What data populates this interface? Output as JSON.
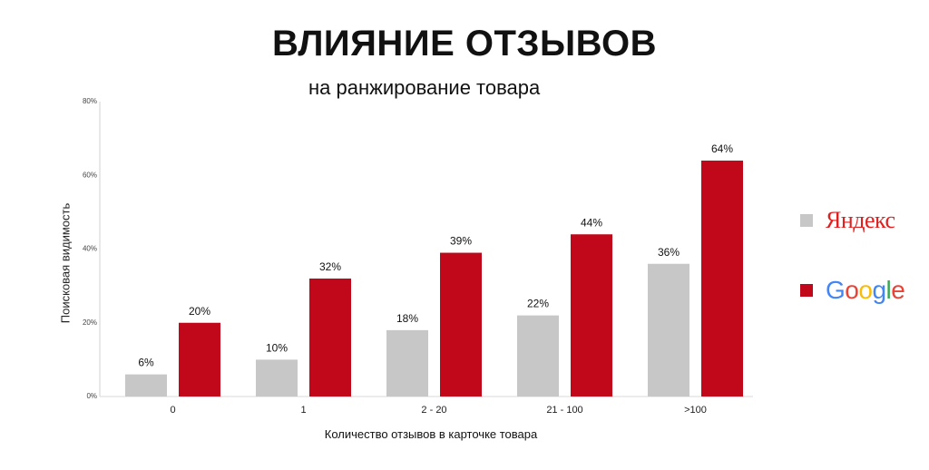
{
  "colors": {
    "yandex": "#c7c7c7",
    "google": "#c1081a"
  },
  "chart_data": {
    "type": "bar",
    "title": "ВЛИЯНИЕ ОТЗЫВОВ",
    "subtitle": "на ранжирование товара",
    "xlabel": "Количество отзывов в карточке товара",
    "ylabel": "Поисковая видимость",
    "categories": [
      "0",
      "1",
      "2 - 20",
      "21 - 100",
      ">100"
    ],
    "ylim": [
      0,
      80
    ],
    "yticks": [
      0,
      20,
      40,
      60,
      80
    ],
    "ytick_labels": [
      "0%",
      "20%",
      "40%",
      "60%",
      "80%"
    ],
    "grid": false,
    "legend_position": "right",
    "series": [
      {
        "name": "Яндекс",
        "values": [
          6,
          10,
          18,
          22,
          36
        ],
        "labels": [
          "6%",
          "10%",
          "18%",
          "22%",
          "36%"
        ]
      },
      {
        "name": "Google",
        "values": [
          20,
          32,
          39,
          44,
          64
        ],
        "labels": [
          "20%",
          "32%",
          "39%",
          "44%",
          "64%"
        ]
      }
    ]
  }
}
